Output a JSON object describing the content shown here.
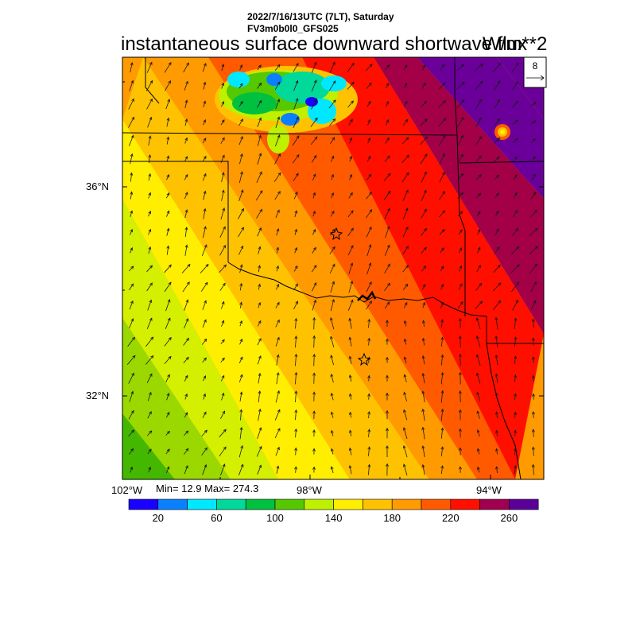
{
  "header": {
    "line1": "2022/7/16/13UTC (7LT), Saturday",
    "line2": "FV3m0b0l0_GFS025",
    "field_title": "instantaneous surface downward shortwave flux",
    "units": "W/m**2"
  },
  "vector_reference": {
    "value": "8"
  },
  "axes": {
    "lat_labels": [
      "36°N",
      "32°N"
    ],
    "lon_labels": [
      "102°W",
      "98°W",
      "94°W"
    ]
  },
  "stats": {
    "text": "Min= 12.9 Max= 274.3"
  },
  "colorbar": {
    "colors": [
      "#1a00ff",
      "#0a80ff",
      "#00e8ff",
      "#00d99a",
      "#00c040",
      "#55c800",
      "#bff000",
      "#ffee00",
      "#ffc200",
      "#ff9a00",
      "#ff5a00",
      "#ff0f00",
      "#a10050",
      "#5a0099"
    ],
    "tick_labels": [
      "20",
      "60",
      "100",
      "140",
      "180",
      "220",
      "260"
    ]
  },
  "bands": {
    "colors": [
      "#44b800",
      "#9ad800",
      "#d4ef00",
      "#ffee00",
      "#ffc200",
      "#ff9a00",
      "#ff5a00",
      "#ff0f00",
      "#a30048",
      "#6a0099"
    ]
  }
}
